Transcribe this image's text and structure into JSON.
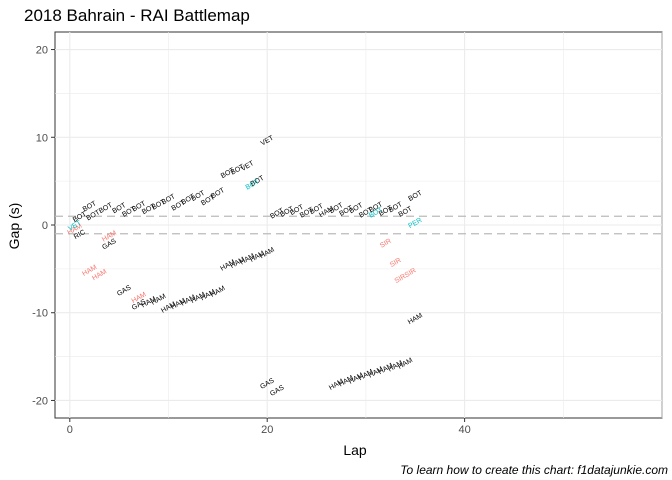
{
  "chart_data": {
    "type": "scatter",
    "title": "2018 Bahrain - RAI Battlemap",
    "xlabel": "Lap",
    "ylabel": "Gap (s)",
    "caption": "To learn how to create this chart: f1datajunkie.com",
    "xlim": [
      -1.5,
      60
    ],
    "ylim": [
      -22,
      22
    ],
    "x_ticks": [
      0,
      20,
      40
    ],
    "y_ticks": [
      -20,
      -10,
      0,
      10,
      20
    ],
    "grid": true,
    "legend": "none",
    "reference_lines": [
      1,
      -1
    ],
    "colors": {
      "ahead": "#000000",
      "behind_rai": "#f8766d",
      "ahead_rai": "#00bfc4",
      "refline": "#bbbbbb",
      "grid": "#ebebeb"
    },
    "series": [
      {
        "name": "ahead",
        "points": [
          {
            "x": 1,
            "y": 0.9,
            "label": "BOT"
          },
          {
            "x": 2,
            "y": 2.1,
            "label": "BOT"
          },
          {
            "x": 3,
            "y": 1.5,
            "label": "BOTBOT"
          },
          {
            "x": 5,
            "y": 1.9,
            "label": "BOT"
          },
          {
            "x": 6,
            "y": 1.5,
            "label": "BOT"
          },
          {
            "x": 7,
            "y": 2.1,
            "label": "BOT"
          },
          {
            "x": 8,
            "y": 1.8,
            "label": "BOT"
          },
          {
            "x": 9,
            "y": 2.3,
            "label": "BOT"
          },
          {
            "x": 10,
            "y": 2.9,
            "label": "BOT"
          },
          {
            "x": 11,
            "y": 2.2,
            "label": "BOT"
          },
          {
            "x": 12,
            "y": 2.9,
            "label": "BOT"
          },
          {
            "x": 13,
            "y": 3.3,
            "label": "BOT"
          },
          {
            "x": 14,
            "y": 2.8,
            "label": "BOT"
          },
          {
            "x": 15,
            "y": 3.6,
            "label": "BOT"
          },
          {
            "x": 16,
            "y": 5.9,
            "label": "BOT"
          },
          {
            "x": 17,
            "y": 6.3,
            "label": "BOT"
          },
          {
            "x": 18,
            "y": 6.7,
            "label": "VET"
          },
          {
            "x": 19,
            "y": 5.0,
            "label": "BOT"
          },
          {
            "x": 20,
            "y": 9.6,
            "label": "VET"
          },
          {
            "x": 21,
            "y": 1.3,
            "label": "BOT"
          },
          {
            "x": 22,
            "y": 1.5,
            "label": "BOT"
          },
          {
            "x": 23,
            "y": 1.7,
            "label": "BOT"
          },
          {
            "x": 24,
            "y": 1.4,
            "label": "BOT"
          },
          {
            "x": 25,
            "y": 1.8,
            "label": "BOT"
          },
          {
            "x": 26,
            "y": 1.5,
            "label": "HAM"
          },
          {
            "x": 27,
            "y": 1.9,
            "label": "BOT"
          },
          {
            "x": 28,
            "y": 1.6,
            "label": "BOT"
          },
          {
            "x": 29,
            "y": 1.9,
            "label": "BOT"
          },
          {
            "x": 30,
            "y": 1.4,
            "label": "BOT"
          },
          {
            "x": 31,
            "y": 2.0,
            "label": "BOT"
          },
          {
            "x": 32,
            "y": 1.6,
            "label": "BOT"
          },
          {
            "x": 33,
            "y": 2.0,
            "label": "BOT"
          },
          {
            "x": 34,
            "y": 1.5,
            "label": "BOT"
          },
          {
            "x": 35,
            "y": 3.3,
            "label": "BOT"
          },
          {
            "x": 1,
            "y": -1.1,
            "label": "RIC"
          },
          {
            "x": 4,
            "y": -2.2,
            "label": "GAS"
          },
          {
            "x": 5.5,
            "y": -7.5,
            "label": "GAS"
          },
          {
            "x": 7,
            "y": -9.1,
            "label": "GAS"
          },
          {
            "x": 8,
            "y": -8.8,
            "label": "HAM"
          },
          {
            "x": 9,
            "y": -8.5,
            "label": "HAM"
          },
          {
            "x": 10,
            "y": -9.4,
            "label": "HAM"
          },
          {
            "x": 11,
            "y": -9.0,
            "label": "HAM"
          },
          {
            "x": 12,
            "y": -8.6,
            "label": "HAM"
          },
          {
            "x": 13,
            "y": -8.3,
            "label": "HAM"
          },
          {
            "x": 14,
            "y": -8.0,
            "label": "HAM"
          },
          {
            "x": 15,
            "y": -7.6,
            "label": "HAM"
          },
          {
            "x": 16,
            "y": -4.6,
            "label": "HAM"
          },
          {
            "x": 17,
            "y": -4.3,
            "label": "HAM"
          },
          {
            "x": 18,
            "y": -3.9,
            "label": "HAM"
          },
          {
            "x": 19,
            "y": -3.6,
            "label": "HAM"
          },
          {
            "x": 20,
            "y": -3.2,
            "label": "HAM"
          },
          {
            "x": 20,
            "y": -18.1,
            "label": "GAS"
          },
          {
            "x": 21,
            "y": -18.9,
            "label": "GAS"
          },
          {
            "x": 27,
            "y": -18.2,
            "label": "HAM"
          },
          {
            "x": 28,
            "y": -17.8,
            "label": "HAM"
          },
          {
            "x": 29,
            "y": -17.5,
            "label": "HAM"
          },
          {
            "x": 30,
            "y": -17.1,
            "label": "HAM"
          },
          {
            "x": 31,
            "y": -16.8,
            "label": "HAM"
          },
          {
            "x": 32,
            "y": -16.4,
            "label": "HAM"
          },
          {
            "x": 33,
            "y": -16.1,
            "label": "HAM"
          },
          {
            "x": 34,
            "y": -15.8,
            "label": "HAM"
          },
          {
            "x": 35,
            "y": -10.7,
            "label": "HAM"
          }
        ]
      },
      {
        "name": "behind_rai",
        "points": [
          {
            "x": 0.5,
            "y": -0.5,
            "label": "HAM"
          },
          {
            "x": 4,
            "y": -1.3,
            "label": "HAM"
          },
          {
            "x": 2,
            "y": -5.2,
            "label": "HAM"
          },
          {
            "x": 3,
            "y": -5.7,
            "label": "HAM"
          },
          {
            "x": 7,
            "y": -8.3,
            "label": "HAM"
          },
          {
            "x": 32,
            "y": -2.1,
            "label": "SIR"
          },
          {
            "x": 33,
            "y": -4.3,
            "label": "SIR"
          },
          {
            "x": 34,
            "y": -5.8,
            "label": "SIRSIR"
          }
        ]
      },
      {
        "name": "ahead_rai",
        "points": [
          {
            "x": 0.5,
            "y": -0.1,
            "label": "VET"
          },
          {
            "x": 18.5,
            "y": 4.6,
            "label": "BOT"
          },
          {
            "x": 31,
            "y": 1.4,
            "label": "BOT"
          },
          {
            "x": 35,
            "y": 0.2,
            "label": "PER"
          }
        ]
      }
    ]
  }
}
